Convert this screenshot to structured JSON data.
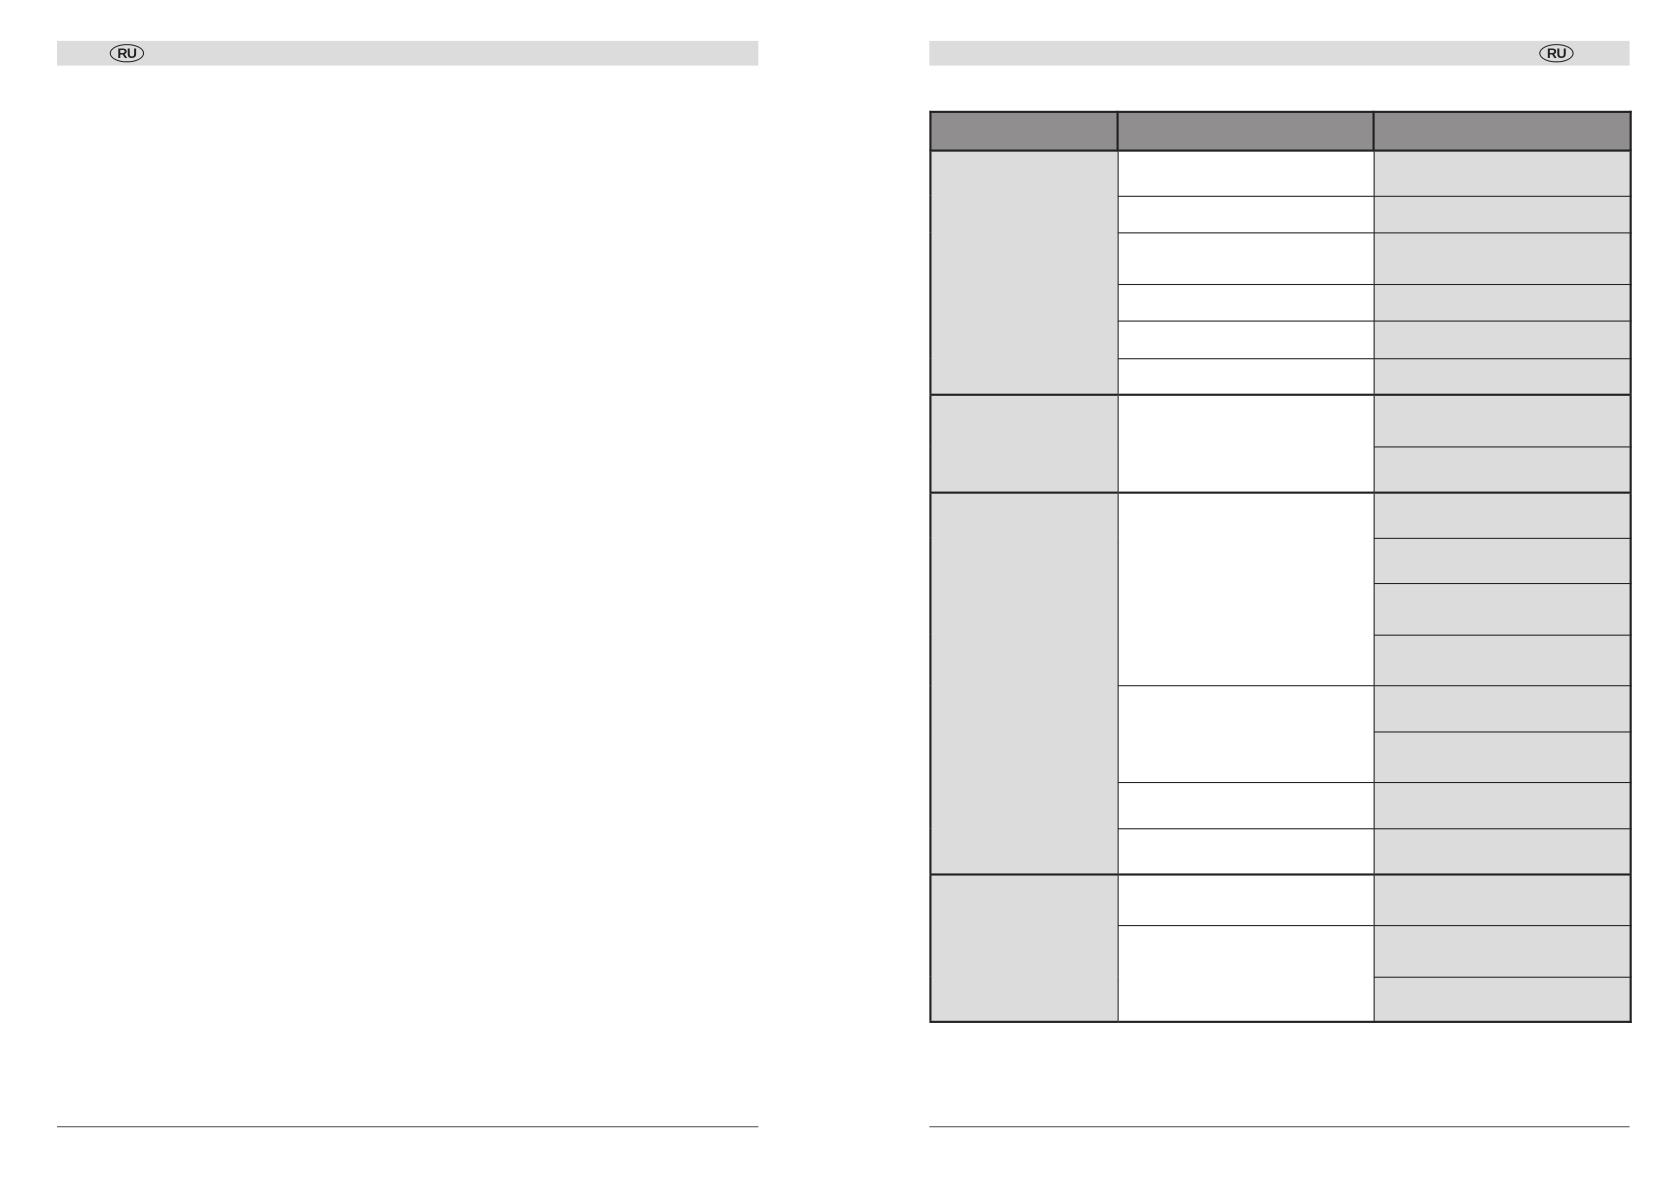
{
  "left_page": {
    "header_badge": "RU"
  },
  "right_page": {
    "header_badge": "RU"
  },
  "colors": {
    "header_bar": "#dcdcdc",
    "table_header": "#908e8f",
    "cell_shaded": "#dcdcdc"
  }
}
